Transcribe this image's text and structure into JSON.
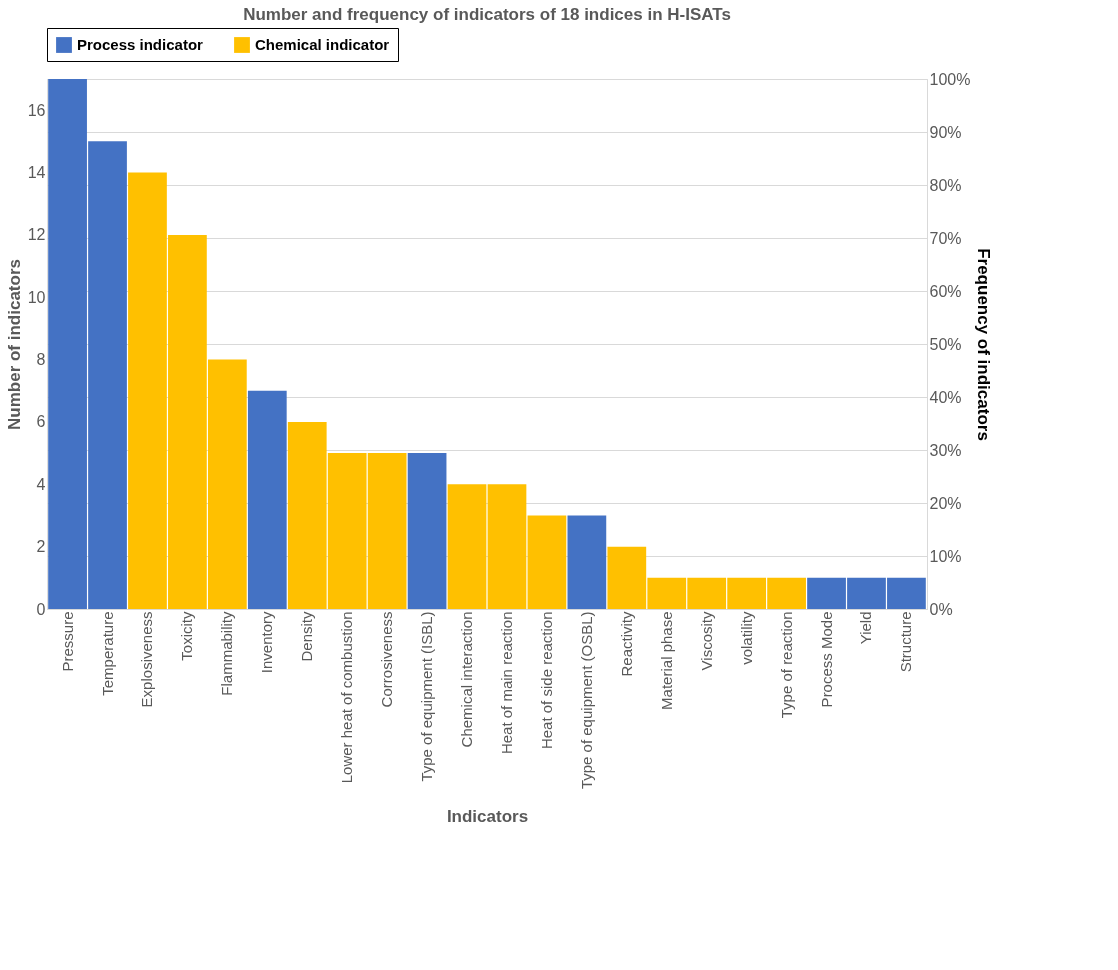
{
  "chart_data": {
    "type": "bar",
    "title": "Number and frequency of indicators of 18 indices in H-ISATs",
    "xlabel": "Indicators",
    "ylabel": "Number of indicators",
    "y2label": "Frequency of indicators",
    "categories": [
      "Pressure",
      "Temperature",
      "Explosiveness",
      "Toxicity",
      "Flammability",
      "Inventory",
      "Density",
      "Lower heat of combustion",
      "Corrosiveness",
      "Type of equipment (ISBL)",
      "Chemical interaction",
      "Heat of main reaction",
      "Heat of side reaction",
      "Type of equipment (OSBL)",
      "Reactivity",
      "Material phase",
      "Viscosity",
      "volatility",
      "Type of reaction",
      "Process Mode",
      "Yield",
      "Structure"
    ],
    "series": [
      {
        "name": "Process indicator",
        "color": "#4472c4",
        "values": [
          17,
          15,
          null,
          null,
          null,
          7,
          null,
          null,
          null,
          5,
          null,
          null,
          null,
          3,
          null,
          null,
          null,
          null,
          null,
          1,
          1,
          1
        ]
      },
      {
        "name": "Chemical indicator",
        "color": "#ffc000",
        "values": [
          null,
          null,
          14,
          12,
          8,
          null,
          6,
          5,
          5,
          null,
          4,
          4,
          3,
          null,
          2,
          1,
          1,
          1,
          1,
          null,
          null,
          null
        ]
      }
    ],
    "ylim": [
      0,
      17
    ],
    "yticks": [
      0,
      2,
      4,
      6,
      8,
      10,
      12,
      14,
      16
    ],
    "y2lim": [
      0,
      100
    ],
    "y2ticks": [
      {
        "value": 0,
        "label": "0%"
      },
      {
        "value": 10,
        "label": "10%"
      },
      {
        "value": 20,
        "label": "20%"
      },
      {
        "value": 30,
        "label": "30%"
      },
      {
        "value": 40,
        "label": "40%"
      },
      {
        "value": 50,
        "label": "50%"
      },
      {
        "value": 60,
        "label": "60%"
      },
      {
        "value": 70,
        "label": "70%"
      },
      {
        "value": 80,
        "label": "80%"
      },
      {
        "value": 90,
        "label": "90%"
      },
      {
        "value": 100,
        "label": "100%"
      }
    ],
    "grid": "y2",
    "legend": "top"
  }
}
